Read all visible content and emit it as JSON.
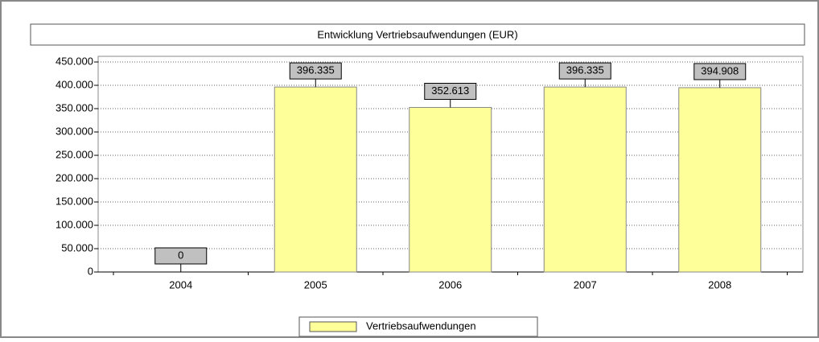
{
  "chart_data": {
    "type": "bar",
    "title": "Entwicklung Vertriebsaufwendungen (EUR)",
    "categories": [
      "2004",
      "2005",
      "2006",
      "2007",
      "2008"
    ],
    "series": [
      {
        "name": "Vertriebsaufwendungen",
        "color": "#ffff99",
        "values": [
          0,
          396335,
          352613,
          396335,
          394908
        ],
        "value_labels": [
          "0",
          "396.335",
          "352.613",
          "396.335",
          "394.908"
        ]
      }
    ],
    "ylim": [
      0,
      450000
    ],
    "yticks": [
      {
        "value": 0,
        "label": "0"
      },
      {
        "value": 50000,
        "label": "50.000"
      },
      {
        "value": 100000,
        "label": "100.000"
      },
      {
        "value": 150000,
        "label": "150.000"
      },
      {
        "value": 200000,
        "label": "200.000"
      },
      {
        "value": 250000,
        "label": "250.000"
      },
      {
        "value": 300000,
        "label": "300.000"
      },
      {
        "value": 350000,
        "label": "350.000"
      },
      {
        "value": 400000,
        "label": "400.000"
      },
      {
        "value": 450000,
        "label": "450.000"
      }
    ],
    "grid": true
  }
}
